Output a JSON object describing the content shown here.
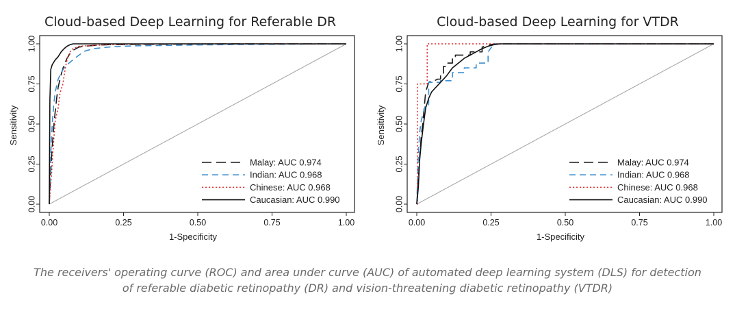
{
  "colors": {
    "malay": "#1a1a1a",
    "indian": "#3d8fd0",
    "chinese": "#e03030",
    "caucasian": "#111111",
    "reference": "#a8a8a8"
  },
  "caption": {
    "line1": "The receivers' operating curve (ROC) and area under curve (AUC) of automated deep learning system (DLS) for detection",
    "line2": "of referable diabetic retinopathy (DR) and vision-threatening diabetic retinopathy (VTDR)"
  },
  "chart_data": [
    {
      "type": "line",
      "title": "Cloud-based Deep Learning for Referable DR",
      "xlabel": "1-Specificity",
      "ylabel": "Sensitivity",
      "xlim": [
        0,
        1
      ],
      "ylim": [
        0,
        1
      ],
      "xticks": [
        "0.00",
        "0.25",
        "0.50",
        "0.75",
        "1.00"
      ],
      "yticks": [
        "0.00",
        "0.25",
        "0.50",
        "0.75",
        "1.00"
      ],
      "legend_position": "bottom-right",
      "reference_line": true,
      "series": [
        {
          "name": "Malay: AUC 0.974",
          "style": "longdash",
          "color_key": "malay",
          "x": [
            0,
            0.003,
            0.006,
            0.01,
            0.015,
            0.02,
            0.025,
            0.03,
            0.04,
            0.05,
            0.06,
            0.07,
            0.08,
            0.1,
            0.12,
            0.15,
            0.2,
            0.3,
            0.5,
            0.7,
            1.0
          ],
          "y": [
            0,
            0.12,
            0.24,
            0.36,
            0.48,
            0.58,
            0.66,
            0.73,
            0.81,
            0.87,
            0.91,
            0.94,
            0.96,
            0.98,
            0.985,
            0.99,
            0.995,
            0.997,
            0.999,
            1.0,
            1.0
          ]
        },
        {
          "name": "Indian: AUC 0.968",
          "style": "dash",
          "color_key": "indian",
          "x": [
            0,
            0.003,
            0.006,
            0.01,
            0.015,
            0.02,
            0.03,
            0.04,
            0.05,
            0.06,
            0.08,
            0.1,
            0.12,
            0.15,
            0.2,
            0.25,
            0.3,
            0.4,
            0.5,
            0.6,
            0.8,
            1.0
          ],
          "y": [
            0,
            0.18,
            0.35,
            0.5,
            0.62,
            0.7,
            0.78,
            0.82,
            0.85,
            0.87,
            0.9,
            0.93,
            0.955,
            0.97,
            0.98,
            0.985,
            0.988,
            0.99,
            0.993,
            0.995,
            0.998,
            1.0
          ]
        },
        {
          "name": "Chinese: AUC 0.968",
          "style": "dot",
          "color_key": "chinese",
          "x": [
            0,
            0.004,
            0.008,
            0.012,
            0.016,
            0.02,
            0.025,
            0.03,
            0.035,
            0.04,
            0.045,
            0.05,
            0.055,
            0.06,
            0.065,
            0.07,
            0.08,
            0.1,
            0.15,
            0.2,
            0.3,
            0.5,
            1.0
          ],
          "y": [
            0,
            0.1,
            0.2,
            0.32,
            0.42,
            0.52,
            0.56,
            0.6,
            0.68,
            0.72,
            0.74,
            0.8,
            0.86,
            0.9,
            0.93,
            0.95,
            0.97,
            0.985,
            0.99,
            0.995,
            0.998,
            1.0,
            1.0
          ]
        },
        {
          "name": "Caucasian: AUC 0.990",
          "style": "solid",
          "color_key": "caucasian",
          "x": [
            0,
            0.002,
            0.005,
            0.01,
            0.02,
            0.03,
            0.04,
            0.05,
            0.06,
            0.07,
            0.08,
            0.1,
            0.15,
            0.2,
            0.3,
            0.5,
            1.0
          ],
          "y": [
            0,
            0.65,
            0.84,
            0.87,
            0.9,
            0.92,
            0.95,
            0.97,
            0.985,
            0.995,
            1.0,
            1.0,
            1.0,
            1.0,
            1.0,
            1.0,
            1.0
          ]
        }
      ]
    },
    {
      "type": "line",
      "title": "Cloud-based Deep Learning for VTDR",
      "xlabel": "1-Specificity",
      "ylabel": "Sensitivity",
      "xlim": [
        0,
        1
      ],
      "ylim": [
        0,
        1
      ],
      "xticks": [
        "0.00",
        "0.25",
        "0.50",
        "0.75",
        "1.00"
      ],
      "yticks": [
        "0.00",
        "0.25",
        "0.50",
        "0.75",
        "1.00"
      ],
      "legend_position": "bottom-right",
      "reference_line": true,
      "series": [
        {
          "name": "Malay: AUC 0.974",
          "style": "longdash",
          "color_key": "malay",
          "x": [
            0,
            0.005,
            0.01,
            0.015,
            0.02,
            0.025,
            0.03,
            0.04,
            0.05,
            0.06,
            0.07,
            0.08,
            0.08,
            0.09,
            0.09,
            0.1,
            0.1,
            0.12,
            0.12,
            0.13,
            0.13,
            0.18,
            0.18,
            0.22,
            0.22,
            0.26,
            0.3,
            0.5,
            1.0
          ],
          "y": [
            0,
            0.15,
            0.3,
            0.42,
            0.5,
            0.6,
            0.7,
            0.76,
            0.77,
            0.77,
            0.78,
            0.78,
            0.8,
            0.8,
            0.86,
            0.86,
            0.88,
            0.88,
            0.92,
            0.92,
            0.93,
            0.93,
            0.95,
            0.95,
            0.98,
            1.0,
            1.0,
            1.0,
            1.0
          ]
        },
        {
          "name": "Indian: AUC 0.968",
          "style": "dash",
          "color_key": "indian",
          "x": [
            0,
            0.005,
            0.01,
            0.015,
            0.02,
            0.03,
            0.04,
            0.04,
            0.08,
            0.08,
            0.12,
            0.12,
            0.16,
            0.16,
            0.2,
            0.2,
            0.24,
            0.24,
            0.26,
            0.3,
            0.5,
            1.0
          ],
          "y": [
            0,
            0.3,
            0.45,
            0.52,
            0.56,
            0.62,
            0.62,
            0.76,
            0.76,
            0.77,
            0.77,
            0.82,
            0.82,
            0.85,
            0.85,
            0.88,
            0.88,
            0.95,
            1.0,
            1.0,
            1.0,
            1.0
          ]
        },
        {
          "name": "Chinese: AUC 0.968",
          "style": "dot",
          "color_key": "chinese",
          "x": [
            0,
            0.002,
            0.002,
            0.035,
            0.035,
            0.3,
            0.5,
            1.0
          ],
          "y": [
            0,
            0,
            0.75,
            0.75,
            1.0,
            1.0,
            1.0,
            1.0
          ]
        },
        {
          "name": "Caucasian: AUC 0.990",
          "style": "solid",
          "color_key": "caucasian",
          "x": [
            0,
            0.005,
            0.01,
            0.015,
            0.02,
            0.025,
            0.03,
            0.04,
            0.05,
            0.06,
            0.07,
            0.08,
            0.1,
            0.12,
            0.14,
            0.16,
            0.18,
            0.2,
            0.22,
            0.24,
            0.26,
            0.28,
            0.3,
            0.5,
            1.0
          ],
          "y": [
            0,
            0.1,
            0.28,
            0.38,
            0.46,
            0.53,
            0.6,
            0.66,
            0.7,
            0.72,
            0.74,
            0.76,
            0.8,
            0.85,
            0.88,
            0.91,
            0.93,
            0.95,
            0.97,
            0.985,
            0.995,
            1.0,
            1.0,
            1.0,
            1.0
          ]
        }
      ]
    }
  ]
}
